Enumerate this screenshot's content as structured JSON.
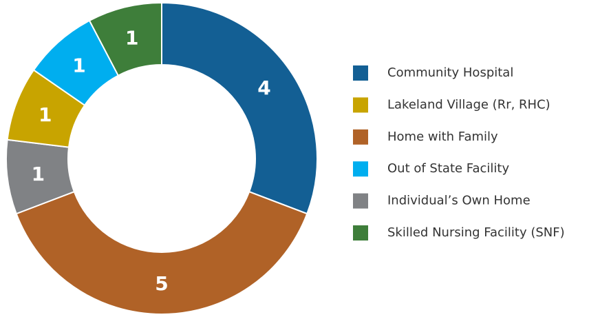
{
  "chart_data": {
    "type": "donut",
    "categories": [
      "Community Hospital",
      "Lakeland Village (Rr, RHC)",
      "Home with Family",
      "Out of State Facility",
      "Individual’s Own Home",
      "Skilled Nursing Facility (SNF)"
    ],
    "values": [
      4,
      1,
      5,
      1,
      1,
      1
    ],
    "colors": [
      "#135f94",
      "#c8a400",
      "#b06227",
      "#00aeef",
      "#808285",
      "#3e7e3a"
    ],
    "slice_order": [
      0,
      2,
      4,
      1,
      3,
      5
    ],
    "legend": "right"
  }
}
